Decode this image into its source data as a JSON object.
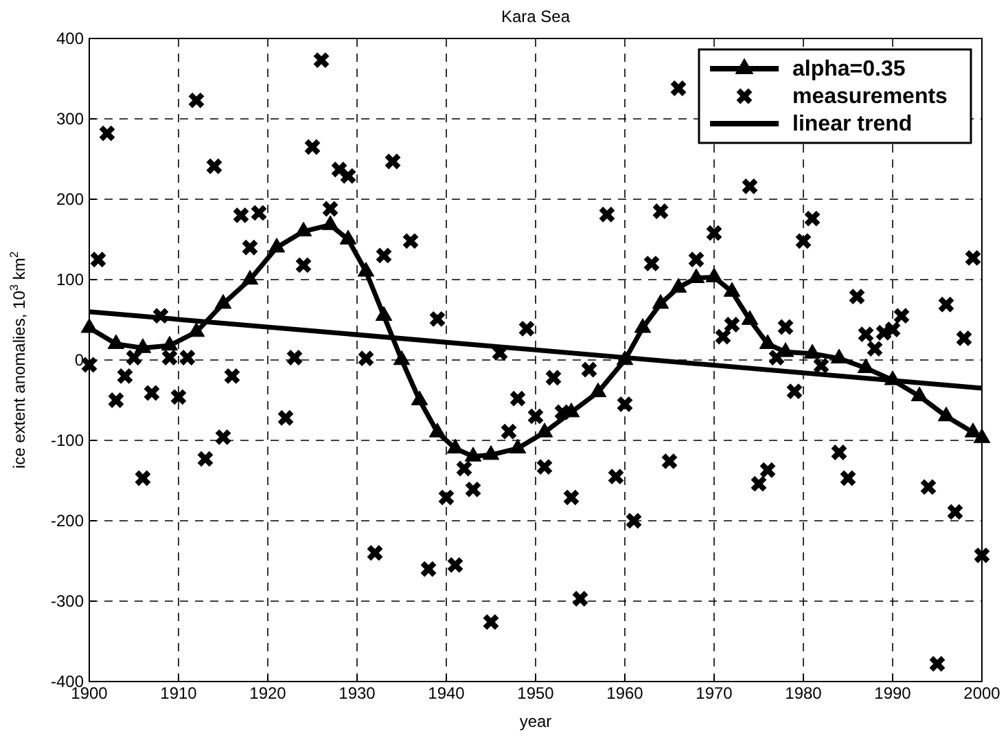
{
  "chart_data": {
    "type": "line",
    "title": "Kara Sea",
    "xlabel": "year",
    "ylabel": "ice extent anomalies, 10$^{3}$ km$^{2}$",
    "xlim": [
      1900,
      2000
    ],
    "xticks": [
      1900,
      1910,
      1920,
      1930,
      1940,
      1950,
      1960,
      1970,
      1980,
      1990,
      2000
    ],
    "ylim": [
      -400,
      400
    ],
    "yticks": [
      -400,
      -300,
      -200,
      -100,
      0,
      100,
      200,
      300,
      400
    ],
    "grid": true,
    "legend": "top right",
    "series": [
      {
        "name": "alpha=0.35",
        "color": "#000000",
        "marker": "triangle",
        "x": [
          1900,
          1903,
          1906,
          1909,
          1912,
          1915,
          1918,
          1921,
          1924,
          1927,
          1929,
          1931,
          1933,
          1935,
          1937,
          1939,
          1941,
          1943,
          1945,
          1948,
          1951,
          1954,
          1957,
          1960,
          1962,
          1964,
          1966,
          1968,
          1970,
          1972,
          1974,
          1976,
          1978,
          1981,
          1984,
          1987,
          1990,
          1993,
          1996,
          1999,
          2000
        ],
        "values": [
          40,
          20,
          15,
          18,
          35,
          70,
          100,
          140,
          160,
          168,
          150,
          110,
          55,
          0,
          -50,
          -90,
          -110,
          -120,
          -118,
          -110,
          -90,
          -65,
          -40,
          0,
          40,
          70,
          90,
          102,
          103,
          85,
          50,
          20,
          10,
          8,
          2,
          -10,
          -25,
          -45,
          -70,
          -90,
          -97
        ]
      },
      {
        "name": "measurements",
        "type": "scatter",
        "color": "#000000",
        "marker": "cross",
        "x": [
          1900,
          1901,
          1902,
          1903,
          1904,
          1905,
          1906,
          1907,
          1908,
          1909,
          1910,
          1911,
          1912,
          1913,
          1914,
          1915,
          1916,
          1917,
          1918,
          1919,
          1922,
          1923,
          1924,
          1925,
          1926,
          1927,
          1928,
          1929,
          1931,
          1932,
          1933,
          1934,
          1936,
          1939,
          1938,
          1940,
          1941,
          1942,
          1943,
          1945,
          1946,
          1947,
          1948,
          1949,
          1950,
          1951,
          1952,
          1953,
          1954,
          1955,
          1956,
          1958,
          1959,
          1960,
          1961,
          1963,
          1964,
          1965,
          1966,
          1968,
          1970,
          1971,
          1972,
          1974,
          1975,
          1976,
          1977,
          1978,
          1979,
          1980,
          1981,
          1982,
          1984,
          1985,
          1986,
          1987,
          1988,
          1989,
          1990,
          1991,
          1994,
          1995,
          1996,
          1997,
          1998,
          1999,
          2000
        ],
        "values": [
          -6,
          125,
          282,
          -50,
          -20,
          3,
          -147,
          -41,
          55,
          3,
          -46,
          3,
          323,
          -123,
          241,
          -96,
          -20,
          180,
          140,
          183,
          -72,
          3,
          118,
          265,
          373,
          188,
          237,
          229,
          2,
          -240,
          130,
          247,
          148,
          51,
          -260,
          -171,
          -255,
          -135,
          -161,
          -326,
          9,
          -89,
          -48,
          39,
          -70,
          -133,
          -22,
          -65,
          -171,
          -297,
          -12,
          181,
          -145,
          -55,
          -200,
          120,
          185,
          -126,
          338,
          125,
          158,
          29,
          44,
          216,
          -154,
          -137,
          3,
          41,
          -39,
          148,
          176,
          -7,
          -115,
          -147,
          79,
          32,
          14,
          34,
          38,
          55,
          -158,
          -378,
          69,
          -189,
          27,
          127,
          -243
        ]
      },
      {
        "name": "linear trend",
        "color": "#000000",
        "marker": "none",
        "x": [
          1900,
          2000
        ],
        "values": [
          60,
          -35
        ]
      }
    ]
  }
}
